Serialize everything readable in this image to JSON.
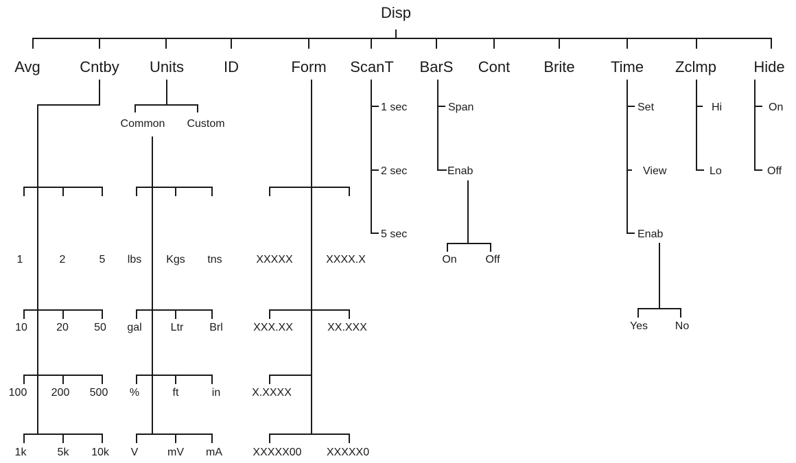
{
  "root": "Disp",
  "menus": {
    "avg": "Avg",
    "cntby": "Cntby",
    "units": "Units",
    "id": "ID",
    "form": "Form",
    "scant": "ScanT",
    "bars": "BarS",
    "cont": "Cont",
    "brite": "Brite",
    "time": "Time",
    "zclmp": "Zclmp",
    "hide": "Hide"
  },
  "cntby": [
    [
      "1",
      "2",
      "5"
    ],
    [
      "10",
      "20",
      "50"
    ],
    [
      "100",
      "200",
      "500"
    ],
    [
      "1k",
      "5k",
      "10k"
    ]
  ],
  "units": {
    "common": "Common",
    "custom": "Custom",
    "rows": [
      [
        "lbs",
        "Kgs",
        "tns"
      ],
      [
        "gal",
        "Ltr",
        "Brl"
      ],
      [
        "%",
        "ft",
        "in"
      ],
      [
        "V",
        "mV",
        "mA"
      ]
    ]
  },
  "form": [
    [
      "XXXXX",
      "XXXX.X"
    ],
    [
      "XXX.XX",
      "XX.XXX"
    ],
    [
      "X.XXXX"
    ],
    [
      "XXXXX00",
      "XXXXX0"
    ]
  ],
  "scant": [
    "1 sec",
    "2 sec",
    "5 sec"
  ],
  "bars": {
    "span": "Span",
    "enab": "Enab",
    "on": "On",
    "off": "Off"
  },
  "time": {
    "set": "Set",
    "view": "View",
    "enab": "Enab",
    "yes": "Yes",
    "no": "No"
  },
  "zclmp": {
    "hi": "Hi",
    "lo": "Lo"
  },
  "hide": {
    "on": "On",
    "off": "Off"
  }
}
